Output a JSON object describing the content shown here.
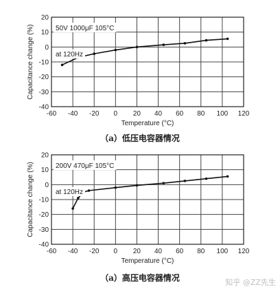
{
  "chart_data": [
    {
      "type": "line",
      "annotation_title": "50V 1000μF 105°C",
      "annotation_freq": "at 120Hz",
      "xlabel": "Temperature (°C)",
      "ylabel": "Capacitance change (%)",
      "xlim": [
        -60,
        120
      ],
      "ylim": [
        -40,
        20
      ],
      "xticks": [
        "-60",
        "-40",
        "-20",
        "0",
        "20",
        "40",
        "60",
        "80",
        "100",
        "120"
      ],
      "yticks": [
        "20",
        "10",
        "0",
        "-10",
        "-20",
        "-30",
        "-40"
      ],
      "grid": true,
      "caption": "（a）低压电容器情况",
      "x": [
        -50,
        -35,
        -20,
        0,
        20,
        45,
        65,
        85,
        105
      ],
      "y": [
        -12,
        -7,
        -4.5,
        -2,
        0,
        1.5,
        2.5,
        4.5,
        5.5
      ]
    },
    {
      "type": "line",
      "annotation_title": "200V 470μF 105°C",
      "annotation_freq": "at 120Hz",
      "xlabel": "Temperature (°C)",
      "ylabel": "Capacitance change (%)",
      "xlim": [
        -60,
        120
      ],
      "ylim": [
        -40,
        20
      ],
      "xticks": [
        "-60",
        "-40",
        "-20",
        "0",
        "20",
        "40",
        "60",
        "80",
        "100",
        "120"
      ],
      "yticks": [
        "20",
        "10",
        "0",
        "-10",
        "-20",
        "-30",
        "-40"
      ],
      "grid": true,
      "caption": "（a）高压电容器情况",
      "x": [
        -40,
        -35,
        -30,
        -25,
        0,
        20,
        45,
        65,
        85,
        105
      ],
      "y": [
        -16,
        -9,
        -5,
        -4,
        -2,
        -0.5,
        1,
        2.5,
        4,
        5.5
      ]
    }
  ],
  "watermark": "知乎 @ZZ先生"
}
